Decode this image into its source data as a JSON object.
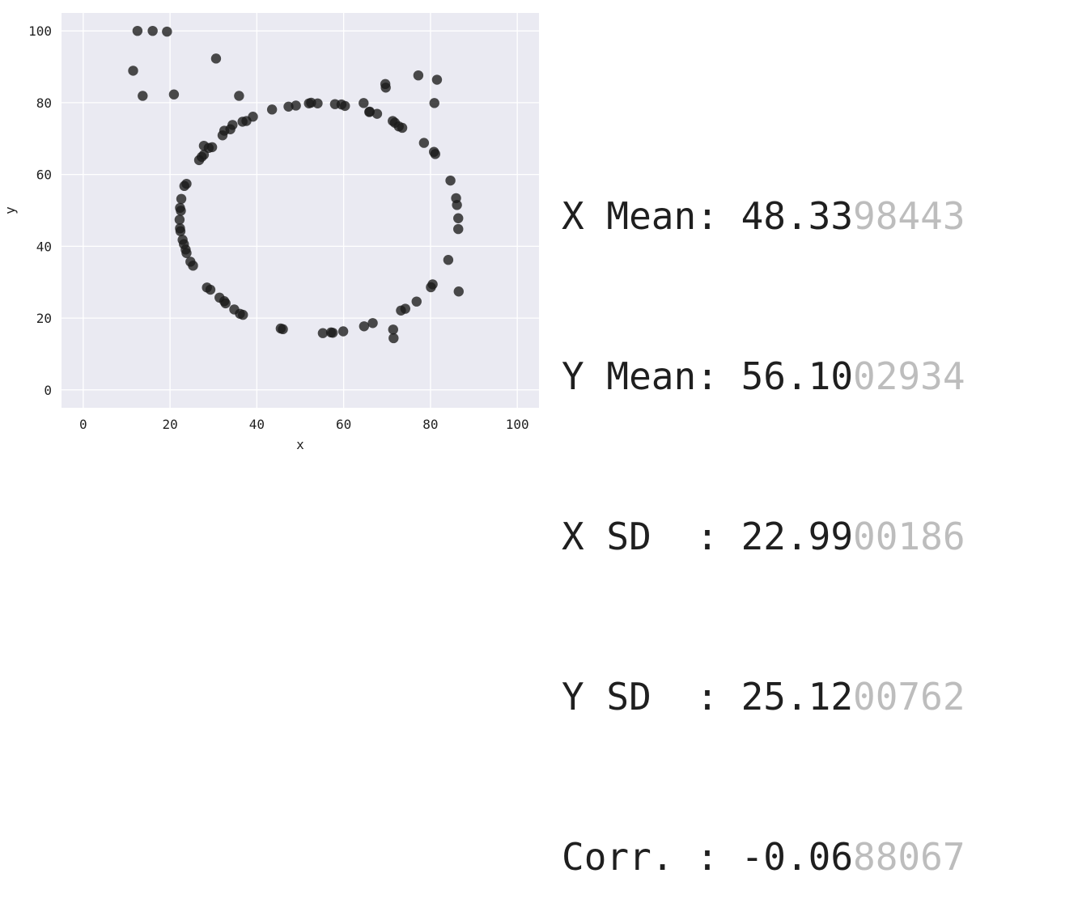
{
  "chart_data": {
    "type": "scatter",
    "xlabel": "x",
    "ylabel": "y",
    "xlim": [
      -5,
      105
    ],
    "ylim": [
      -5,
      105
    ],
    "xticks": [
      0,
      20,
      40,
      60,
      80,
      100
    ],
    "yticks": [
      0,
      20,
      40,
      60,
      80,
      100
    ],
    "grid": true,
    "background": "#eaeaf2",
    "point_color": "#1a1a1a",
    "points": [
      [
        12.5,
        100
      ],
      [
        16,
        100
      ],
      [
        19.3,
        99.8
      ],
      [
        11.5,
        88.9
      ],
      [
        13.7,
        81.9
      ],
      [
        20.9,
        82.3
      ],
      [
        30.6,
        92.3
      ],
      [
        35.9,
        81.9
      ],
      [
        69.6,
        85.2
      ],
      [
        69.7,
        84.2
      ],
      [
        77.2,
        87.6
      ],
      [
        81.5,
        86.4
      ],
      [
        80.9,
        79.9
      ],
      [
        43.5,
        78.1
      ],
      [
        47.3,
        78.9
      ],
      [
        49.0,
        79.2
      ],
      [
        52.0,
        79.8
      ],
      [
        52.5,
        80.0
      ],
      [
        54.0,
        79.8
      ],
      [
        58.0,
        79.6
      ],
      [
        59.5,
        79.5
      ],
      [
        60.3,
        79.1
      ],
      [
        64.6,
        79.9
      ],
      [
        65.9,
        77.4
      ],
      [
        66.0,
        77.5
      ],
      [
        67.7,
        76.9
      ],
      [
        71.3,
        74.9
      ],
      [
        71.8,
        74.4
      ],
      [
        72.7,
        73.4
      ],
      [
        73.5,
        73.0
      ],
      [
        39.1,
        76.1
      ],
      [
        37.6,
        74.9
      ],
      [
        36.7,
        74.7
      ],
      [
        34.4,
        73.8
      ],
      [
        33.9,
        72.6
      ],
      [
        32.5,
        72.2
      ],
      [
        32.1,
        70.9
      ],
      [
        29.7,
        67.6
      ],
      [
        28.9,
        67.4
      ],
      [
        27.8,
        68.0
      ],
      [
        27.8,
        65.5
      ],
      [
        27.3,
        64.9
      ],
      [
        26.7,
        64.0
      ],
      [
        23.8,
        57.4
      ],
      [
        23.3,
        56.8
      ],
      [
        22.6,
        53.2
      ],
      [
        22.3,
        50.7
      ],
      [
        22.5,
        49.9
      ],
      [
        22.2,
        47.4
      ],
      [
        22.3,
        45.0
      ],
      [
        22.4,
        44.2
      ],
      [
        22.9,
        41.8
      ],
      [
        23.2,
        40.6
      ],
      [
        23.6,
        39.1
      ],
      [
        23.8,
        38.1
      ],
      [
        24.7,
        35.7
      ],
      [
        25.3,
        34.6
      ],
      [
        28.5,
        28.5
      ],
      [
        29.3,
        27.9
      ],
      [
        31.4,
        25.7
      ],
      [
        32.5,
        24.7
      ],
      [
        32.8,
        24.1
      ],
      [
        34.8,
        22.4
      ],
      [
        36.1,
        21.2
      ],
      [
        36.8,
        20.9
      ],
      [
        45.5,
        17.1
      ],
      [
        46.0,
        16.9
      ],
      [
        55.2,
        15.8
      ],
      [
        57.1,
        16.0
      ],
      [
        57.5,
        15.9
      ],
      [
        59.9,
        16.3
      ],
      [
        64.7,
        17.7
      ],
      [
        66.7,
        18.6
      ],
      [
        71.4,
        16.8
      ],
      [
        71.5,
        14.4
      ],
      [
        73.2,
        22.1
      ],
      [
        74.2,
        22.6
      ],
      [
        76.8,
        24.6
      ],
      [
        80.1,
        28.6
      ],
      [
        80.5,
        29.4
      ],
      [
        86.5,
        27.4
      ],
      [
        84.1,
        36.2
      ],
      [
        86.4,
        44.8
      ],
      [
        86.4,
        47.8
      ],
      [
        86.1,
        51.5
      ],
      [
        85.9,
        53.4
      ],
      [
        84.6,
        58.3
      ],
      [
        81.1,
        65.7
      ],
      [
        80.8,
        66.3
      ],
      [
        78.5,
        68.8
      ]
    ]
  },
  "stats": [
    {
      "label": "X Mean: ",
      "value_main": "48.33",
      "value_faded": "98443"
    },
    {
      "label": "Y Mean: ",
      "value_main": "56.10",
      "value_faded": "02934"
    },
    {
      "label": "X SD  : ",
      "value_main": "22.99",
      "value_faded": "00186"
    },
    {
      "label": "Y SD  : ",
      "value_main": "25.12",
      "value_faded": "00762"
    },
    {
      "label": "Corr. : ",
      "value_main": "-0.06",
      "value_faded": "88067"
    }
  ]
}
